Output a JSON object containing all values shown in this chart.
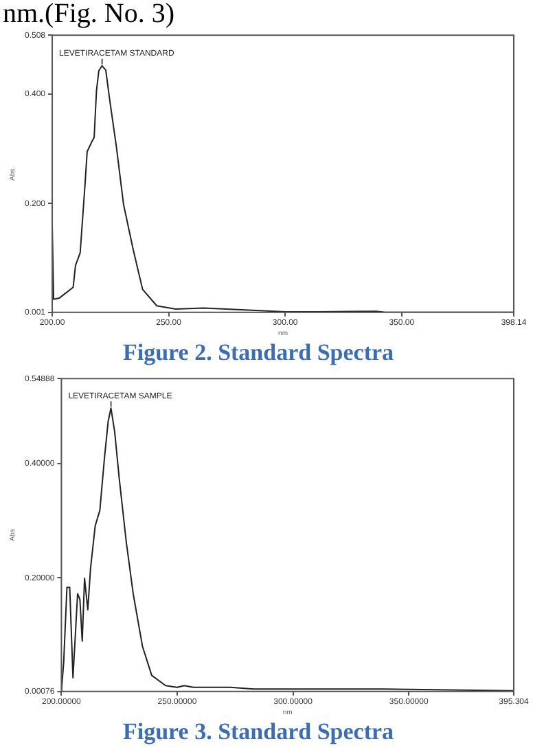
{
  "chart_data": [
    {
      "type": "line",
      "title": "Figure 2. Standard Spectra",
      "xlabel": "nm",
      "ylabel": "Abs.",
      "annotations": [
        "nm.(Fig. No. 3)",
        {
          "text": "LEVETIRACETAM STANDARD",
          "x": 221.4,
          "y": 0.452
        }
      ],
      "xlim": [
        200,
        398.14
      ],
      "xticks": [
        {
          "value": 200,
          "label": "200.00"
        },
        {
          "value": 250,
          "label": "250.00"
        },
        {
          "value": 300,
          "label": "300.00"
        },
        {
          "value": 350,
          "label": "350.00"
        },
        {
          "value": 398.14,
          "label": "398.14"
        }
      ],
      "ylim": [
        0.001,
        0.508
      ],
      "yticks": [
        {
          "value": 0.001,
          "label": "0.001"
        },
        {
          "value": 0.2,
          "label": "0.200"
        },
        {
          "value": 0.4,
          "label": "0.400"
        },
        {
          "value": 0.508,
          "label": "0.508"
        }
      ],
      "grid": false,
      "legend": false,
      "marker": "none",
      "line_style": "solid",
      "series": [
        {
          "color": "#222222",
          "x": [
            200,
            200.6,
            203,
            209,
            210,
            212,
            214,
            215,
            217,
            218,
            219,
            220,
            221.4,
            223,
            224.5,
            227.6,
            230.6,
            234.7,
            238.8,
            244.9,
            253,
            265,
            279.6,
            300,
            314,
            339,
            343,
            398
          ],
          "values": [
            0.16,
            0.025,
            0.027,
            0.047,
            0.087,
            0.11,
            0.23,
            0.295,
            0.313,
            0.321,
            0.406,
            0.443,
            0.452,
            0.444,
            0.395,
            0.302,
            0.199,
            0.117,
            0.043,
            0.013,
            0.007,
            0.009,
            0.006,
            0.002,
            0.002,
            0.003,
            0.001,
            0.001
          ]
        }
      ]
    },
    {
      "type": "line",
      "title": "Figure 3. Standard Spectra",
      "xlabel": "nm",
      "ylabel": "Abs",
      "annotations": [
        {
          "text": "LEVETIRACETAM SAMPLE",
          "x": 221.4,
          "y": 0.497
        }
      ],
      "xlim": [
        200,
        395.304
      ],
      "xticks": [
        {
          "value": 200,
          "label": "200.00000"
        },
        {
          "value": 250,
          "label": "250.00000"
        },
        {
          "value": 300,
          "label": "300.00000"
        },
        {
          "value": 350,
          "label": "350.00000"
        },
        {
          "value": 395.304,
          "label": "395.304"
        }
      ],
      "ylim": [
        0.00076,
        0.54888
      ],
      "yticks": [
        {
          "value": 0.00076,
          "label": "0.00076"
        },
        {
          "value": 0.2,
          "label": "0.20000"
        },
        {
          "value": 0.4,
          "label": "0.40000"
        },
        {
          "value": 0.54888,
          "label": "0.54888"
        }
      ],
      "grid": false,
      "legend": false,
      "marker": "none",
      "line_style": "solid",
      "series": [
        {
          "color": "#222222",
          "x": [
            200,
            201,
            202.4,
            203.6,
            205,
            206,
            207,
            208,
            209,
            210,
            211.4,
            212.6,
            214.6,
            216.6,
            218.6,
            220.2,
            221.4,
            223,
            225,
            228,
            231,
            235,
            239,
            245,
            250,
            253,
            257,
            273,
            283,
            301,
            339,
            395
          ],
          "values": [
            0.001,
            0.052,
            0.183,
            0.183,
            0.025,
            0.098,
            0.172,
            0.162,
            0.089,
            0.199,
            0.144,
            0.217,
            0.291,
            0.318,
            0.41,
            0.474,
            0.497,
            0.456,
            0.373,
            0.263,
            0.172,
            0.08,
            0.029,
            0.011,
            0.008,
            0.011,
            0.008,
            0.008,
            0.005,
            0.005,
            0.005,
            0.002
          ]
        }
      ]
    }
  ]
}
